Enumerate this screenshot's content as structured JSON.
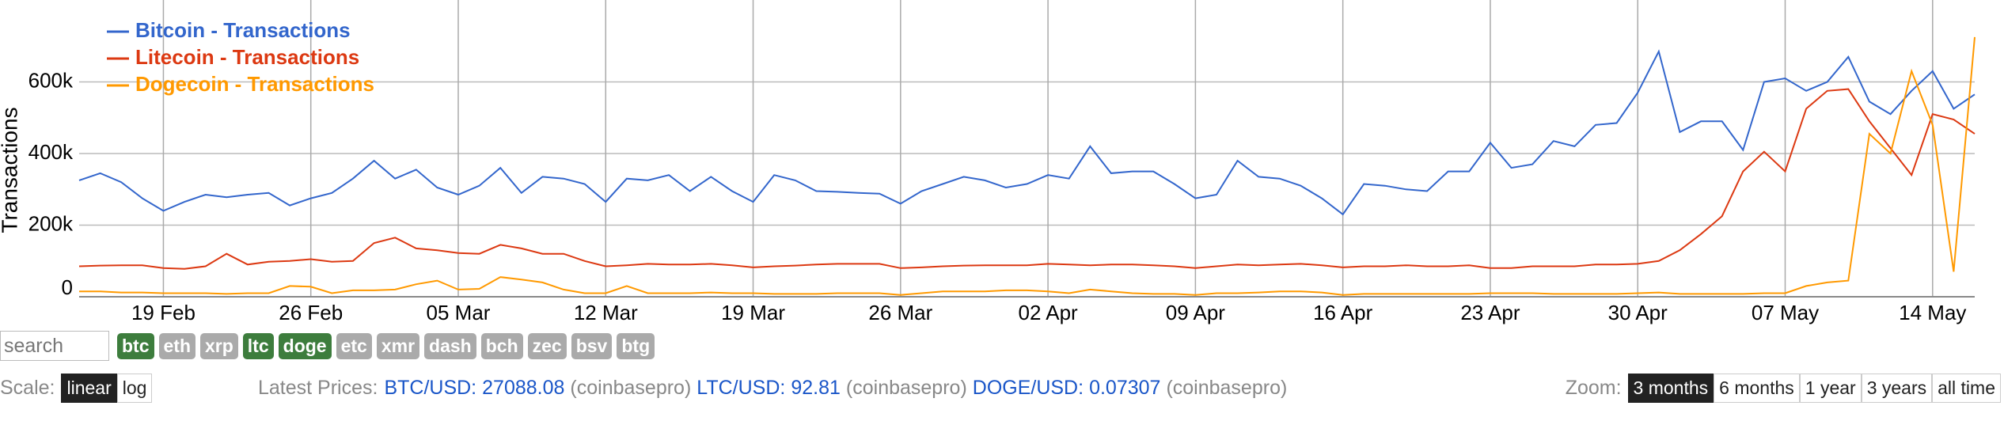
{
  "chart_data": {
    "type": "line",
    "y_label": "Transactions",
    "categories": [
      null,
      null,
      null,
      null,
      "19 Feb",
      null,
      null,
      null,
      null,
      null,
      null,
      "26 Feb",
      null,
      null,
      null,
      null,
      null,
      null,
      "05 Mar",
      null,
      null,
      null,
      null,
      null,
      null,
      "12 Mar",
      null,
      null,
      null,
      null,
      null,
      null,
      "19 Mar",
      null,
      null,
      null,
      null,
      null,
      null,
      "26 Mar",
      null,
      null,
      null,
      null,
      null,
      null,
      "02 Apr",
      null,
      null,
      null,
      null,
      null,
      null,
      "09 Apr",
      null,
      null,
      null,
      null,
      null,
      null,
      "16 Apr",
      null,
      null,
      null,
      null,
      null,
      null,
      "23 Apr",
      null,
      null,
      null,
      null,
      null,
      null,
      "30 Apr",
      null,
      null,
      null,
      null,
      null,
      null,
      "07 May",
      null,
      null,
      null,
      null,
      null,
      null,
      "14 May",
      null,
      null
    ],
    "series": [
      {
        "name": "Bitcoin - Transactions",
        "color": "#3366cc",
        "values": [
          325000,
          345000,
          320000,
          275000,
          240000,
          265000,
          285000,
          278000,
          285000,
          290000,
          255000,
          275000,
          290000,
          330000,
          380000,
          330000,
          355000,
          305000,
          285000,
          310000,
          360000,
          290000,
          335000,
          330000,
          315000,
          265000,
          330000,
          325000,
          340000,
          295000,
          335000,
          295000,
          265000,
          340000,
          325000,
          295000,
          293000,
          290000,
          288000,
          260000,
          295000,
          315000,
          335000,
          325000,
          305000,
          315000,
          340000,
          330000,
          420000,
          345000,
          350000,
          350000,
          315000,
          275000,
          285000,
          380000,
          335000,
          330000,
          310000,
          275000,
          230000,
          315000,
          310000,
          300000,
          295000,
          350000,
          350000,
          430000,
          360000,
          370000,
          435000,
          420000,
          480000,
          485000,
          570000,
          685000,
          460000,
          490000,
          490000,
          410000,
          600000,
          610000,
          575000,
          600000,
          670000,
          545000,
          510000,
          575000,
          630000,
          525000,
          565000
        ]
      },
      {
        "name": "Litecoin - Transactions",
        "color": "#dc3912",
        "values": [
          85000,
          87000,
          88000,
          88000,
          80000,
          78000,
          85000,
          120000,
          90000,
          98000,
          100000,
          105000,
          98000,
          100000,
          150000,
          165000,
          135000,
          130000,
          122000,
          120000,
          145000,
          135000,
          120000,
          120000,
          100000,
          85000,
          88000,
          92000,
          90000,
          90000,
          92000,
          88000,
          82000,
          85000,
          87000,
          90000,
          92000,
          92000,
          92000,
          80000,
          82000,
          85000,
          87000,
          88000,
          88000,
          88000,
          92000,
          90000,
          88000,
          90000,
          90000,
          88000,
          85000,
          80000,
          85000,
          90000,
          88000,
          90000,
          92000,
          88000,
          82000,
          85000,
          85000,
          88000,
          85000,
          85000,
          88000,
          80000,
          80000,
          85000,
          85000,
          85000,
          90000,
          90000,
          92000,
          100000,
          130000,
          175000,
          225000,
          350000,
          405000,
          350000,
          525000,
          575000,
          580000,
          490000,
          415000,
          340000,
          510000,
          495000,
          455000
        ]
      },
      {
        "name": "Dogecoin - Transactions",
        "color": "#ff9900",
        "values": [
          15000,
          15000,
          12000,
          12000,
          10000,
          10000,
          10000,
          8000,
          10000,
          10000,
          30000,
          28000,
          10000,
          18000,
          18000,
          20000,
          35000,
          45000,
          20000,
          22000,
          55000,
          48000,
          40000,
          20000,
          10000,
          10000,
          30000,
          10000,
          10000,
          10000,
          12000,
          10000,
          10000,
          8000,
          8000,
          8000,
          10000,
          10000,
          10000,
          5000,
          10000,
          15000,
          15000,
          15000,
          18000,
          18000,
          15000,
          10000,
          20000,
          15000,
          10000,
          8000,
          8000,
          5000,
          10000,
          10000,
          12000,
          15000,
          15000,
          12000,
          5000,
          8000,
          8000,
          8000,
          8000,
          8000,
          8000,
          10000,
          10000,
          10000,
          8000,
          8000,
          8000,
          8000,
          10000,
          12000,
          8000,
          8000,
          8000,
          8000,
          10000,
          10000,
          30000,
          40000,
          45000,
          455000,
          400000,
          630000,
          480000,
          70000,
          725000
        ]
      }
    ],
    "ylim": [
      0,
      800000
    ],
    "yticks": [
      0,
      {
        "value": 200000,
        "label": "200k"
      },
      {
        "value": 400000,
        "label": "400k"
      },
      {
        "value": 600000,
        "label": "600k"
      }
    ],
    "grid": true,
    "legend": "top-left"
  },
  "ui": {
    "search_placeholder": "search",
    "coins": [
      {
        "label": "btc",
        "active": true
      },
      {
        "label": "eth",
        "active": false
      },
      {
        "label": "xrp",
        "active": false
      },
      {
        "label": "ltc",
        "active": true
      },
      {
        "label": "doge",
        "active": true
      },
      {
        "label": "etc",
        "active": false
      },
      {
        "label": "xmr",
        "active": false
      },
      {
        "label": "dash",
        "active": false
      },
      {
        "label": "bch",
        "active": false
      },
      {
        "label": "zec",
        "active": false
      },
      {
        "label": "bsv",
        "active": false
      },
      {
        "label": "btg",
        "active": false
      }
    ],
    "scale_label": "Scale:",
    "scales": [
      {
        "label": "linear",
        "active": true
      },
      {
        "label": "log",
        "active": false
      }
    ],
    "prices_label": "Latest Prices:",
    "prices": [
      {
        "pair": "BTC/USD:",
        "price": "27088.08",
        "source": "(coinbasepro)"
      },
      {
        "pair": "LTC/USD:",
        "price": "92.81",
        "source": "(coinbasepro)"
      },
      {
        "pair": "DOGE/USD:",
        "price": "0.07307",
        "source": "(coinbasepro)"
      }
    ],
    "zoom_label": "Zoom:",
    "zooms": [
      {
        "label": "3 months",
        "active": true
      },
      {
        "label": "6 months",
        "active": false
      },
      {
        "label": "1 year",
        "active": false
      },
      {
        "label": "3 years",
        "active": false
      },
      {
        "label": "all time",
        "active": false
      }
    ]
  }
}
